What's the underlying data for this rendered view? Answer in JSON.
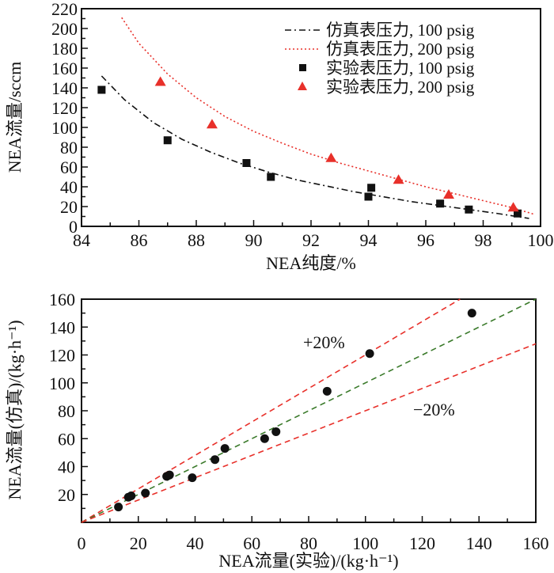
{
  "chart_data": [
    {
      "type": "scatter",
      "title": "",
      "xlabel": "NEA纯度/%",
      "ylabel": "NEA流量/sccm",
      "xlim": [
        84,
        100
      ],
      "ylim": [
        0,
        220
      ],
      "xticks": [
        84,
        86,
        88,
        90,
        92,
        94,
        96,
        98,
        100
      ],
      "yticks": [
        0,
        20,
        40,
        60,
        80,
        100,
        120,
        140,
        160,
        180,
        200,
        220
      ],
      "grid": false,
      "legend_position": "top-right",
      "series": [
        {
          "name": "仿真表压力, 100 psig",
          "kind": "line",
          "style": "dash-dot",
          "color": "#111111",
          "x": [
            84.7,
            85.5,
            86.5,
            87.5,
            88.5,
            89.5,
            90.5,
            91.5,
            92.5,
            93.5,
            94.5,
            95.5,
            96.5,
            97.5,
            98.5,
            99.6
          ],
          "y": [
            152,
            128,
            105,
            88,
            75,
            64,
            55,
            47,
            41,
            35,
            30,
            25,
            21,
            17,
            13,
            8
          ]
        },
        {
          "name": "仿真表压力, 200 psig",
          "kind": "line",
          "style": "dotted",
          "color": "#e8302a",
          "x": [
            85.4,
            86.0,
            87.0,
            88.0,
            89.0,
            90.0,
            91.0,
            92.0,
            93.0,
            94.0,
            95.0,
            96.0,
            97.0,
            98.0,
            99.0,
            99.8
          ],
          "y": [
            211,
            185,
            154,
            130,
            111,
            96,
            84,
            73,
            64,
            56,
            48,
            40,
            33,
            26,
            19,
            12
          ]
        },
        {
          "name": "实验表压力, 100 psig",
          "kind": "scatter",
          "marker": "square",
          "color": "#111111",
          "x": [
            84.7,
            87.0,
            89.75,
            90.6,
            94.0,
            94.1,
            96.5,
            97.5,
            99.2
          ],
          "y": [
            138,
            87,
            64,
            50,
            30,
            39,
            23,
            17,
            13
          ]
        },
        {
          "name": "实验表压力, 200 psig",
          "kind": "scatter",
          "marker": "triangle",
          "color": "#e8302a",
          "x": [
            86.75,
            88.55,
            92.7,
            95.05,
            96.8,
            99.05
          ],
          "y": [
            146,
            103,
            69,
            47,
            32,
            19
          ]
        }
      ]
    },
    {
      "type": "scatter",
      "title": "",
      "xlabel": "NEA流量(实验)/(kg·h⁻¹)",
      "ylabel": "NEA流量(仿真)/(kg·h⁻¹)",
      "xlim": [
        0,
        160
      ],
      "ylim": [
        0,
        160
      ],
      "xticks": [
        0,
        20,
        40,
        60,
        80,
        100,
        120,
        140,
        160
      ],
      "yticks": [
        20,
        40,
        60,
        80,
        100,
        120,
        140,
        160
      ],
      "grid": false,
      "annotations": [
        "+20%",
        "−20%"
      ],
      "reference_lines": [
        {
          "name": "+20%",
          "slope": 1.2,
          "color": "#e8302a",
          "style": "dashed"
        },
        {
          "name": "y=x",
          "slope": 1.0,
          "color": "#3a7a2a",
          "style": "dashed"
        },
        {
          "name": "−20%",
          "slope": 0.8,
          "color": "#e8302a",
          "style": "dashed"
        }
      ],
      "series": [
        {
          "name": "NEA流量",
          "marker": "circle",
          "color": "#111111",
          "x": [
            13,
            16.5,
            17.5,
            22.5,
            30,
            31,
            39,
            47,
            50.5,
            64.5,
            68.5,
            86.5,
            101.5,
            137.5
          ],
          "y": [
            11,
            18,
            19,
            21,
            33,
            34,
            32,
            45,
            53,
            60,
            65,
            94,
            121,
            150
          ]
        }
      ]
    }
  ]
}
